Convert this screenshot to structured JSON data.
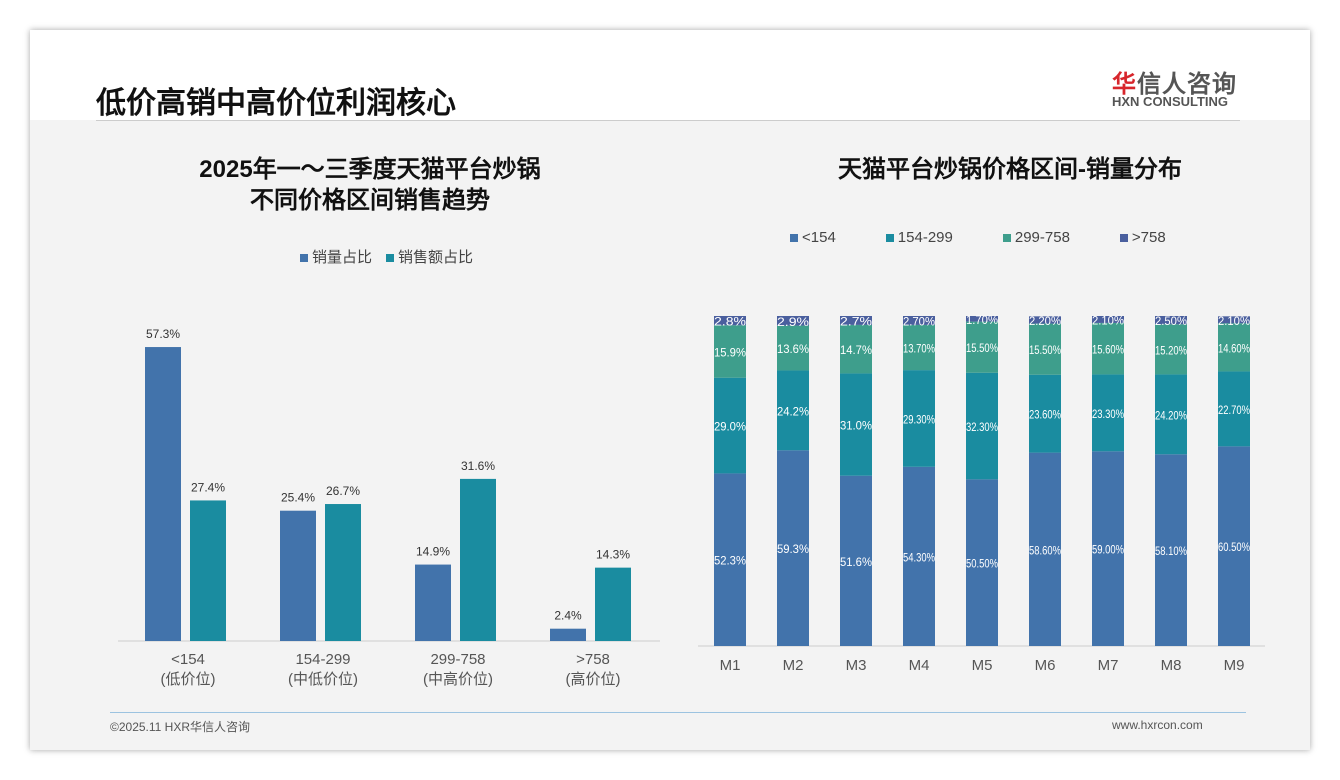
{
  "header": {
    "title": "低价高销中高价位利润核心",
    "logo_cn_red": "华",
    "logo_cn": "信人咨询",
    "logo_en": "HXN CONSULTING"
  },
  "colors": {
    "c1": "#4273ab",
    "c2": "#1a8ca0",
    "c3": "#3e9e8c",
    "c4": "#4a5f9e"
  },
  "chart_data": [
    {
      "type": "bar",
      "title": "2025年一～三季度天猫平台炒锅\n不同价格区间销售趋势",
      "title_line1": "2025年一～三季度天猫平台炒锅",
      "title_line2": "不同价格区间销售趋势",
      "categories": [
        "<154",
        "154-299",
        "299-758",
        ">758"
      ],
      "category_sub": [
        "(低价位)",
        "(中低价位)",
        "(中高价位)",
        "(高价位)"
      ],
      "series": [
        {
          "name": "销量占比",
          "values": [
            57.3,
            25.4,
            14.9,
            2.4
          ],
          "labels": [
            "57.3%",
            "25.4%",
            "14.9%",
            "2.4%"
          ]
        },
        {
          "name": "销售额占比",
          "values": [
            27.4,
            26.7,
            31.6,
            14.3
          ],
          "labels": [
            "27.4%",
            "26.7%",
            "31.6%",
            "14.3%"
          ]
        }
      ],
      "legend": "top"
    },
    {
      "type": "bar",
      "stacked": true,
      "title": "天猫平台炒锅价格区间-销量分布",
      "categories": [
        "M1",
        "M2",
        "M3",
        "M4",
        "M5",
        "M6",
        "M7",
        "M8",
        "M9"
      ],
      "series": [
        {
          "name": "<154",
          "values": [
            52.3,
            59.3,
            51.6,
            54.3,
            50.5,
            58.6,
            59.0,
            58.1,
            60.5
          ],
          "labels": [
            "52.3%",
            "59.3%",
            "51.6%",
            "54.30%",
            "50.50%",
            "58.60%",
            "59.00%",
            "58.10%",
            "60.50%"
          ]
        },
        {
          "name": "154-299",
          "values": [
            29.0,
            24.2,
            31.0,
            29.3,
            32.3,
            23.6,
            23.3,
            24.2,
            22.7
          ],
          "labels": [
            "29.0%",
            "24.2%",
            "31.0%",
            "29.30%",
            "32.30%",
            "23.60%",
            "23.30%",
            "24.20%",
            "22.70%"
          ]
        },
        {
          "name": "299-758",
          "values": [
            15.9,
            13.6,
            14.7,
            13.7,
            15.5,
            15.5,
            15.6,
            15.2,
            14.6
          ],
          "labels": [
            "15.9%",
            "13.6%",
            "14.7%",
            "13.70%",
            "15.50%",
            "15.50%",
            "15.60%",
            "15.20%",
            "14.60%"
          ]
        },
        {
          "name": ">758",
          "values": [
            2.8,
            2.9,
            2.7,
            2.7,
            1.7,
            2.2,
            2.1,
            2.5,
            2.1
          ],
          "labels": [
            "2.8%",
            "2.9%",
            "2.7%",
            "2.70%",
            "1.70%",
            "2.20%",
            "2.10%",
            "2.50%",
            "2.10%"
          ]
        }
      ],
      "ylim": [
        0,
        100
      ],
      "legend": "top"
    }
  ],
  "footer": {
    "left": "©2025.11 HXR华信人咨询",
    "right": "www.hxrcon.com"
  }
}
